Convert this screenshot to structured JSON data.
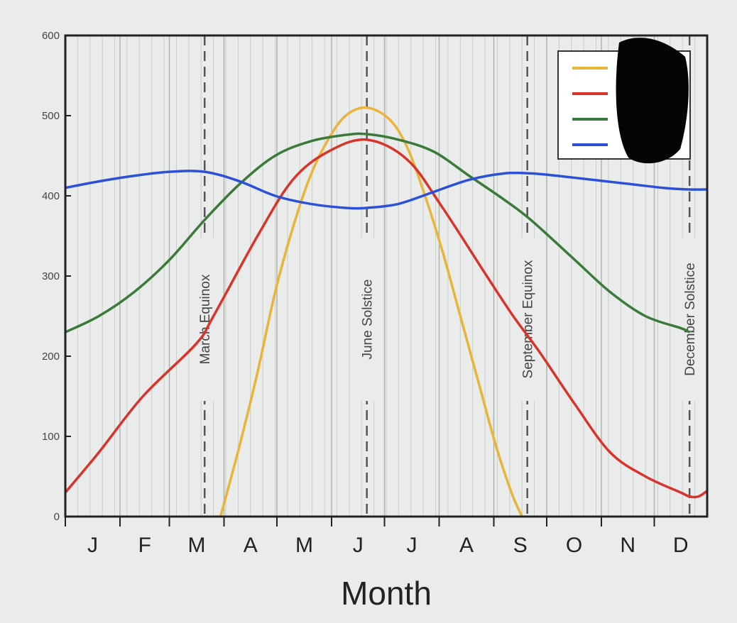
{
  "chart_data": {
    "type": "line",
    "xlabel": "Month",
    "ylabel": "",
    "ylim": [
      0,
      600
    ],
    "xlim": [
      1,
      365
    ],
    "grid": true,
    "legend_placement": "top-right",
    "month_labels": [
      "J",
      "F",
      "M",
      "A",
      "M",
      "J",
      "J",
      "A",
      "S",
      "O",
      "N",
      "D"
    ],
    "month_start_days": [
      1,
      32,
      60,
      91,
      121,
      152,
      182,
      213,
      244,
      274,
      305,
      335
    ],
    "yticks": [
      0,
      100,
      200,
      300,
      400,
      500,
      600
    ],
    "markers": [
      {
        "label": "March Equinox",
        "day": 80
      },
      {
        "label": "June Solstice",
        "day": 172
      },
      {
        "label": "September Equinox",
        "day": 263
      },
      {
        "label": "December Solstice",
        "day": 355
      }
    ],
    "series": [
      {
        "color": "#e8b43a",
        "x": [
          89,
          100,
          110,
          120,
          130,
          140,
          150,
          160,
          172,
          185,
          195,
          205,
          215,
          225,
          235,
          245,
          254,
          260
        ],
        "y": [
          0,
          90,
          180,
          280,
          360,
          425,
          470,
          500,
          510,
          495,
          460,
          400,
          330,
          250,
          170,
          90,
          30,
          0
        ]
      },
      {
        "color": "#d9342b",
        "x": [
          1,
          20,
          45,
          75,
          85,
          110,
          130,
          150,
          172,
          195,
          215,
          240,
          255,
          270,
          290,
          310,
          330,
          350,
          355,
          360,
          365
        ],
        "y": [
          30,
          80,
          150,
          215,
          250,
          350,
          420,
          455,
          470,
          445,
          385,
          300,
          250,
          205,
          140,
          80,
          50,
          30,
          25,
          25,
          32
        ]
      },
      {
        "color": "#3b7a3a",
        "x": [
          1,
          20,
          40,
          60,
          80,
          100,
          120,
          140,
          160,
          172,
          190,
          210,
          230,
          250,
          265,
          290,
          310,
          330,
          350,
          355
        ],
        "y": [
          230,
          250,
          280,
          320,
          370,
          415,
          450,
          468,
          476,
          477,
          470,
          455,
          425,
          395,
          370,
          320,
          280,
          250,
          235,
          230
        ]
      },
      {
        "color": "#2c50d8",
        "x": [
          1,
          20,
          40,
          60,
          80,
          100,
          120,
          140,
          160,
          172,
          190,
          210,
          230,
          250,
          265,
          280,
          300,
          320,
          340,
          355,
          365
        ],
        "y": [
          410,
          418,
          425,
          430,
          430,
          418,
          400,
          390,
          385,
          385,
          390,
          405,
          420,
          428,
          428,
          425,
          420,
          415,
          410,
          408,
          408
        ]
      }
    ]
  }
}
